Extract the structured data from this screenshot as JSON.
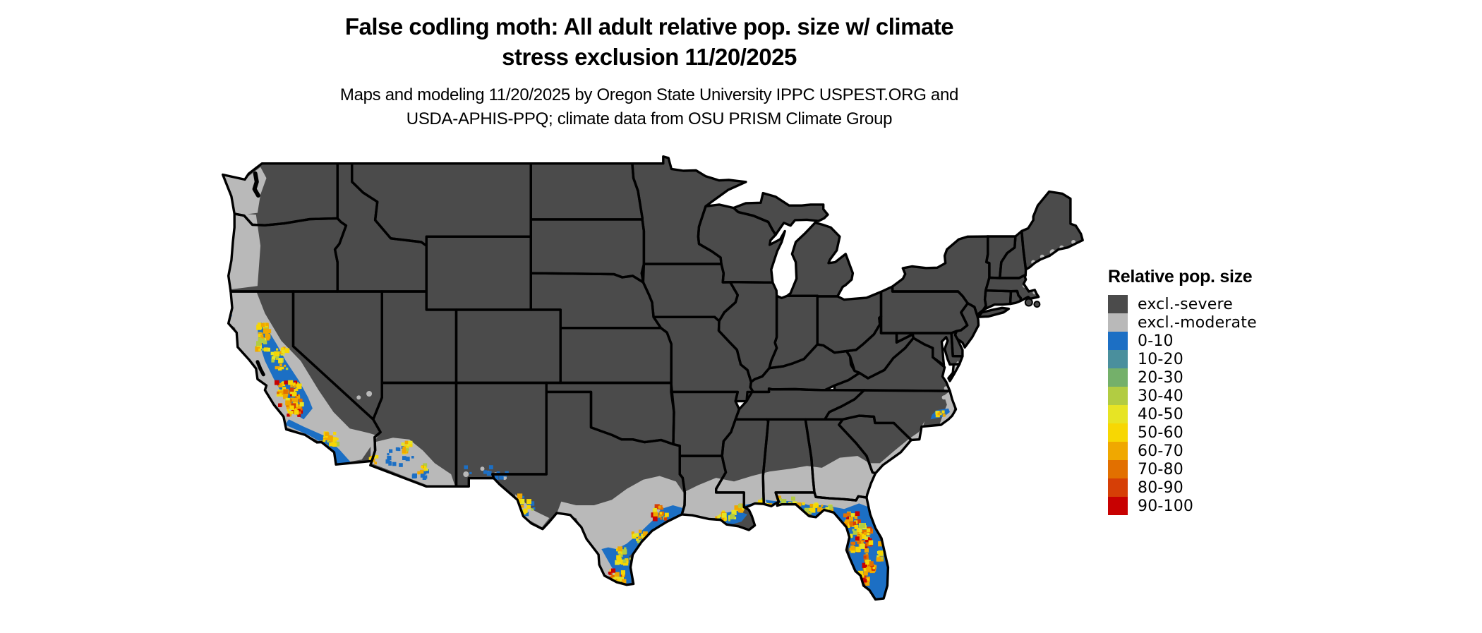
{
  "title": {
    "line1": "False codling moth: All adult relative pop. size w/ climate",
    "line2": "stress exclusion 11/20/2025"
  },
  "subtitle": {
    "line1": "Maps and modeling 11/20/2025 by Oregon State University IPPC USPEST.ORG and",
    "line2": "USDA-APHIS-PPQ; climate data from OSU PRISM Climate Group"
  },
  "legend": {
    "title": "Relative pop. size",
    "entries": [
      {
        "label": "excl.-severe",
        "color": "#4b4b4b"
      },
      {
        "label": "excl.-moderate",
        "color": "#b9b9b9"
      },
      {
        "label": "0-10",
        "color": "#1c6fc4"
      },
      {
        "label": "10-20",
        "color": "#4a8f9d"
      },
      {
        "label": "20-30",
        "color": "#74b06a"
      },
      {
        "label": "30-40",
        "color": "#b2cc42"
      },
      {
        "label": "40-50",
        "color": "#e7e424"
      },
      {
        "label": "50-60",
        "color": "#f7d703"
      },
      {
        "label": "60-70",
        "color": "#f0a800"
      },
      {
        "label": "70-80",
        "color": "#e27000"
      },
      {
        "label": "80-90",
        "color": "#d63f06"
      },
      {
        "label": "90-100",
        "color": "#c80101"
      }
    ]
  },
  "map": {
    "land_color": "#4b4b4b",
    "border_color": "#000000",
    "water_color": "#ffffff"
  }
}
